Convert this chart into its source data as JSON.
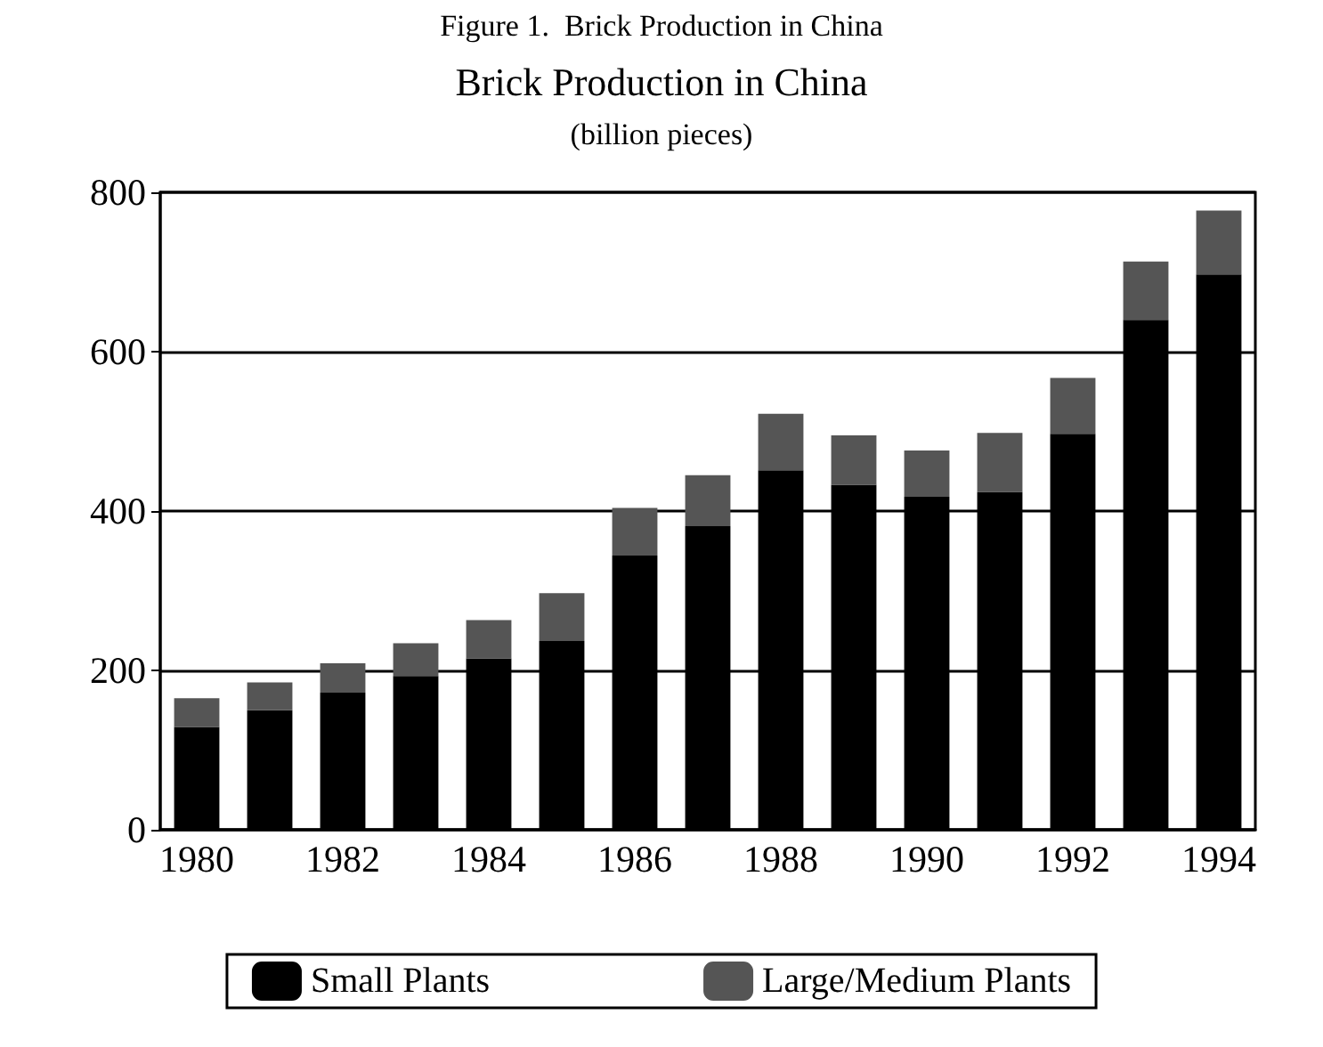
{
  "chart_data": {
    "type": "bar",
    "title": "Brick Production in China",
    "subtitle": "(billion pieces)",
    "annotations": [
      "Figure 1.  Brick Production in China"
    ],
    "categories": [
      "1980",
      null,
      "1982",
      null,
      "1984",
      null,
      "1986",
      null,
      "1988",
      null,
      "1990",
      null,
      "1992",
      null,
      "1994"
    ],
    "stacked": true,
    "series": [
      {
        "name": "Small Plants",
        "color": "#000000",
        "values": [
          129,
          150,
          172,
          193,
          215,
          237,
          344,
          381,
          451,
          433,
          418,
          424,
          497,
          640,
          697
        ]
      },
      {
        "name": "Large/Medium Plants",
        "color": "#555555",
        "values": [
          36,
          35,
          37,
          41,
          48,
          60,
          60,
          64,
          71,
          62,
          58,
          74,
          70,
          73,
          80
        ]
      }
    ],
    "ylim": [
      0,
      800
    ],
    "yticks": [
      0,
      200,
      400,
      600,
      800
    ],
    "grid": "y",
    "legend": "bottom"
  }
}
